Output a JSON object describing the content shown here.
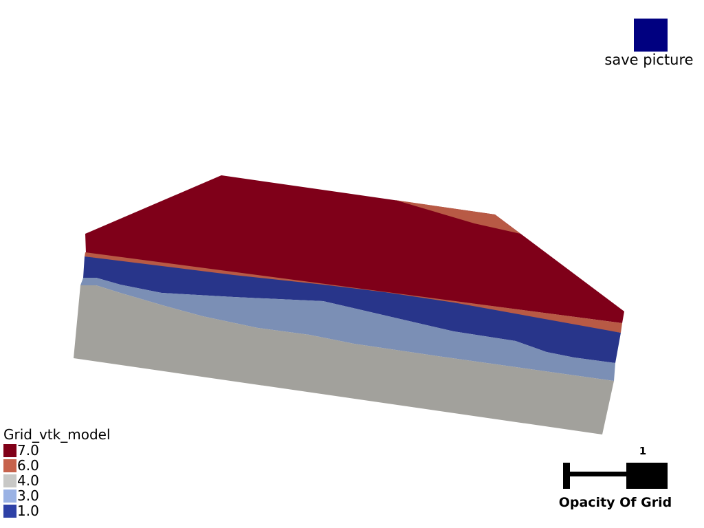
{
  "save": {
    "label": "save picture",
    "button_color": "#000080"
  },
  "legend": {
    "title": "Grid_vtk_model",
    "entries": [
      {
        "label": "7.0",
        "color": "#800018"
      },
      {
        "label": "6.0",
        "color": "#c6624c"
      },
      {
        "label": "4.0",
        "color": "#c8c8c6"
      },
      {
        "label": "3.0",
        "color": "#9ab2e4"
      },
      {
        "label": "1.0",
        "color": "#2e41a6"
      }
    ]
  },
  "slider": {
    "title": "Opacity Of Grid",
    "value": "1",
    "value_fraction": 1.0
  },
  "model": {
    "top_color": "#7f0019",
    "layer_colors": {
      "top_side": "#7f0019",
      "thin_orange": "#b85a45",
      "dark_blue": "#28358a",
      "light_blue": "#7b8fb5",
      "gray": "#a2a19c"
    }
  }
}
